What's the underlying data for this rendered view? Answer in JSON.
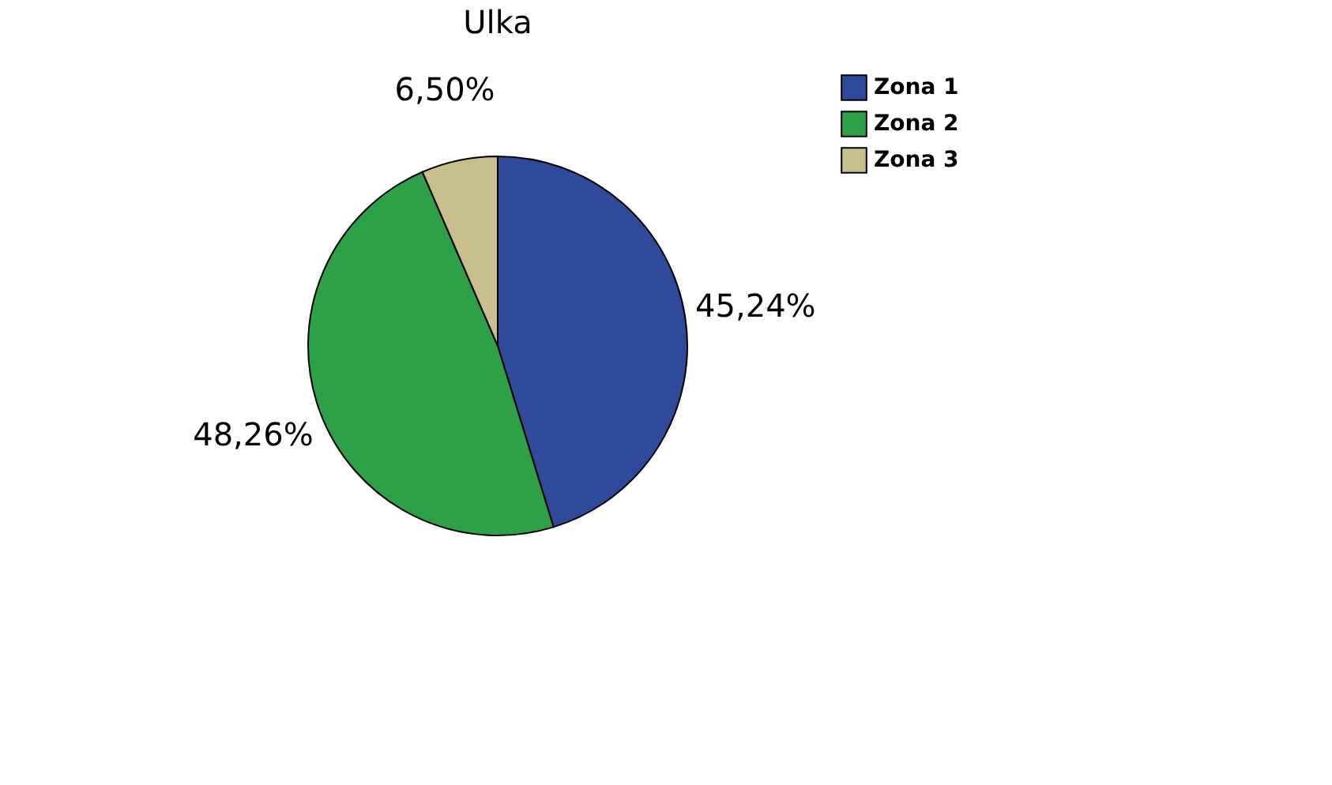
{
  "chart_data": {
    "type": "pie",
    "title": "Ulka",
    "categories": [
      "Zona 1",
      "Zona 2",
      "Zona 3"
    ],
    "values": [
      45.24,
      48.26,
      6.5
    ],
    "colors": [
      "#2f4a9a",
      "#2ea048",
      "#c8bf8c"
    ],
    "value_labels": [
      "45,24%",
      "48,26%",
      "6,50%"
    ],
    "legend": "top right"
  }
}
